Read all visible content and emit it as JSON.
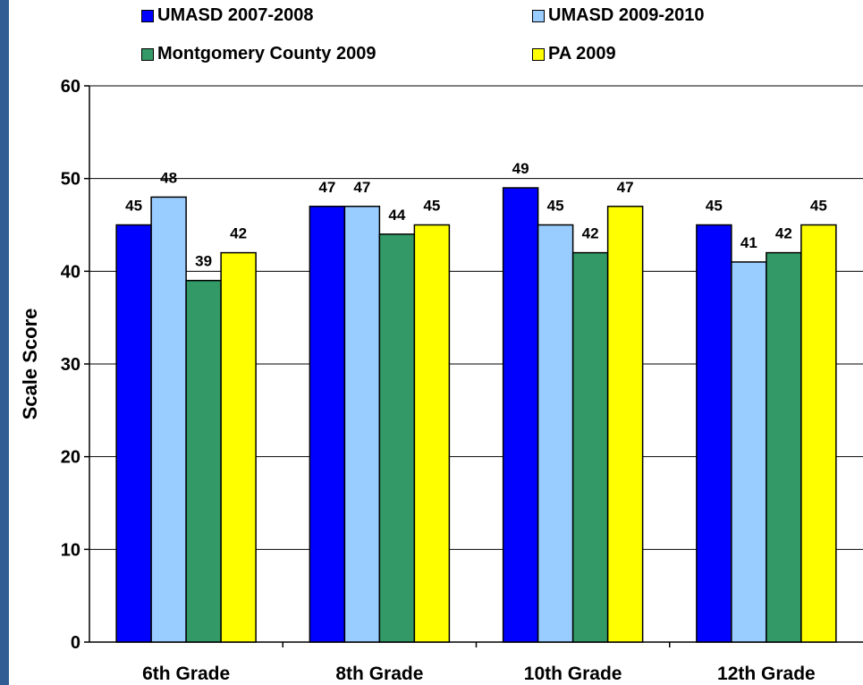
{
  "chart_data": {
    "type": "bar",
    "categories": [
      "6th Grade",
      "8th Grade",
      "10th Grade",
      "12th Grade"
    ],
    "series": [
      {
        "name": "UMASD 2007-2008",
        "color": "#0000ff",
        "values": [
          45,
          47,
          49,
          45
        ]
      },
      {
        "name": "UMASD 2009-2010",
        "color": "#99ccff",
        "values": [
          48,
          47,
          45,
          41
        ]
      },
      {
        "name": "Montgomery County 2009",
        "color": "#339966",
        "values": [
          39,
          44,
          42,
          42
        ]
      },
      {
        "name": "PA 2009",
        "color": "#ffff00",
        "values": [
          42,
          45,
          47,
          45
        ]
      }
    ],
    "ylabel": "Scale Score",
    "xlabel": "",
    "ylim": [
      0,
      60
    ],
    "yticks": [
      0,
      10,
      20,
      30,
      40,
      50,
      60
    ],
    "grid": true,
    "legend": "top"
  }
}
